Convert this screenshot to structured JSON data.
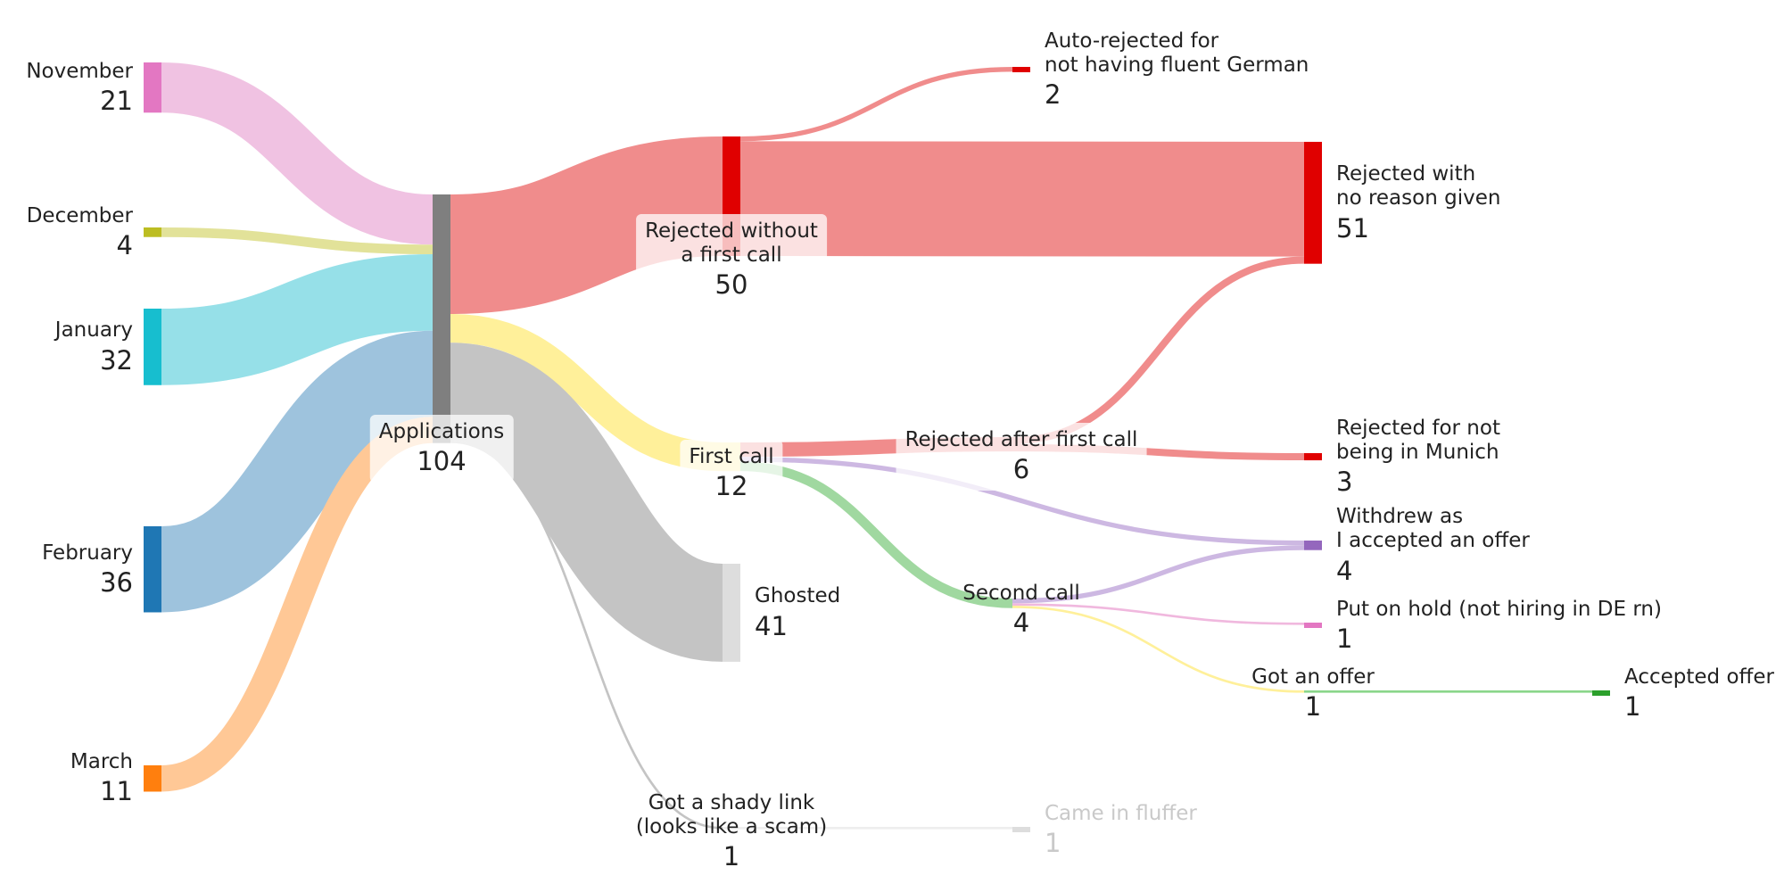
{
  "chart_data": {
    "type": "sankey",
    "nodes": [
      {
        "id": "nov",
        "label": "November",
        "value": 21,
        "color": "#e377c2"
      },
      {
        "id": "dec",
        "label": "December",
        "value": 4,
        "color": "#bcbd22"
      },
      {
        "id": "jan",
        "label": "January",
        "value": 32,
        "color": "#17becf"
      },
      {
        "id": "feb",
        "label": "February",
        "value": 36,
        "color": "#1f77b4"
      },
      {
        "id": "mar",
        "label": "March",
        "value": 11,
        "color": "#ff7f0e"
      },
      {
        "id": "app",
        "label": "Applications",
        "value": 104,
        "color": "#7f7f7f"
      },
      {
        "id": "rwfc",
        "label": "Rejected without\na first call",
        "value": 50,
        "color": "#e00000"
      },
      {
        "id": "fc",
        "label": "First call",
        "value": 12,
        "color": "#fff09a"
      },
      {
        "id": "gh",
        "label": "Ghosted",
        "value": 41,
        "color": "#dddddd"
      },
      {
        "id": "shady",
        "label": "Got a shady link\n(looks like a scam)",
        "value": 1,
        "color": "#c8c8c8"
      },
      {
        "id": "autorej",
        "label": "Auto-rejected for\nnot having fluent German",
        "value": 2,
        "color": "#e00000"
      },
      {
        "id": "rafc",
        "label": "Rejected after first call",
        "value": 6,
        "color": "#f08080"
      },
      {
        "id": "sc",
        "label": "Second call",
        "value": 4,
        "color": "#a8dca8"
      },
      {
        "id": "fluff",
        "label": "Came in fluffer",
        "value": 1,
        "color": "#dddddd"
      },
      {
        "id": "rnr",
        "label": "Rejected with\nno reason given",
        "value": 51,
        "color": "#e00000"
      },
      {
        "id": "munich",
        "label": "Rejected for not\nbeing in Munich",
        "value": 3,
        "color": "#e00000"
      },
      {
        "id": "withdrew",
        "label": "Withdrew as\nI accepted an offer",
        "value": 4,
        "color": "#9467bd"
      },
      {
        "id": "hold",
        "label": "Put on hold (not hiring in DE rn)",
        "value": 1,
        "color": "#e377c2"
      },
      {
        "id": "offer",
        "label": "Got an offer",
        "value": 1,
        "color": "#fff09a"
      },
      {
        "id": "accepted",
        "label": "Accepted offer",
        "value": 1,
        "color": "#2ca02c"
      }
    ],
    "links": [
      {
        "source": "nov",
        "target": "app",
        "value": 21,
        "color": "#f0c2e2"
      },
      {
        "source": "dec",
        "target": "app",
        "value": 4,
        "color": "#e2e299"
      },
      {
        "source": "jan",
        "target": "app",
        "value": 32,
        "color": "#96e0e8"
      },
      {
        "source": "feb",
        "target": "app",
        "value": 36,
        "color": "#9ec3dd"
      },
      {
        "source": "mar",
        "target": "app",
        "value": 11,
        "color": "#ffc896"
      },
      {
        "source": "app",
        "target": "rwfc",
        "value": 50,
        "color": "#f08c8c"
      },
      {
        "source": "app",
        "target": "fc",
        "value": 12,
        "color": "#fff09a"
      },
      {
        "source": "app",
        "target": "gh",
        "value": 41,
        "color": "#c4c4c4"
      },
      {
        "source": "app",
        "target": "shady",
        "value": 1,
        "color": "#c4c4c4"
      },
      {
        "source": "rwfc",
        "target": "autorej",
        "value": 2,
        "color": "#f08c8c"
      },
      {
        "source": "rwfc",
        "target": "rnr",
        "value": 48,
        "color": "#f08c8c"
      },
      {
        "source": "fc",
        "target": "rafc",
        "value": 6,
        "color": "#f08c8c"
      },
      {
        "source": "fc",
        "target": "withdrew",
        "value": 2,
        "color": "#cdb8e2"
      },
      {
        "source": "fc",
        "target": "sc",
        "value": 4,
        "color": "#a0d8a0"
      },
      {
        "source": "rafc",
        "target": "rnr",
        "value": 3,
        "color": "#f08c8c"
      },
      {
        "source": "rafc",
        "target": "munich",
        "value": 3,
        "color": "#f08c8c"
      },
      {
        "source": "sc",
        "target": "withdrew",
        "value": 2,
        "color": "#cdb8e2"
      },
      {
        "source": "sc",
        "target": "hold",
        "value": 1,
        "color": "#f0b8de"
      },
      {
        "source": "sc",
        "target": "offer",
        "value": 1,
        "color": "#fff09a"
      },
      {
        "source": "shady",
        "target": "fluff",
        "value": 1,
        "color": "#eeeeee"
      },
      {
        "source": "offer",
        "target": "accepted",
        "value": 1,
        "color": "#8ad68a"
      }
    ]
  }
}
